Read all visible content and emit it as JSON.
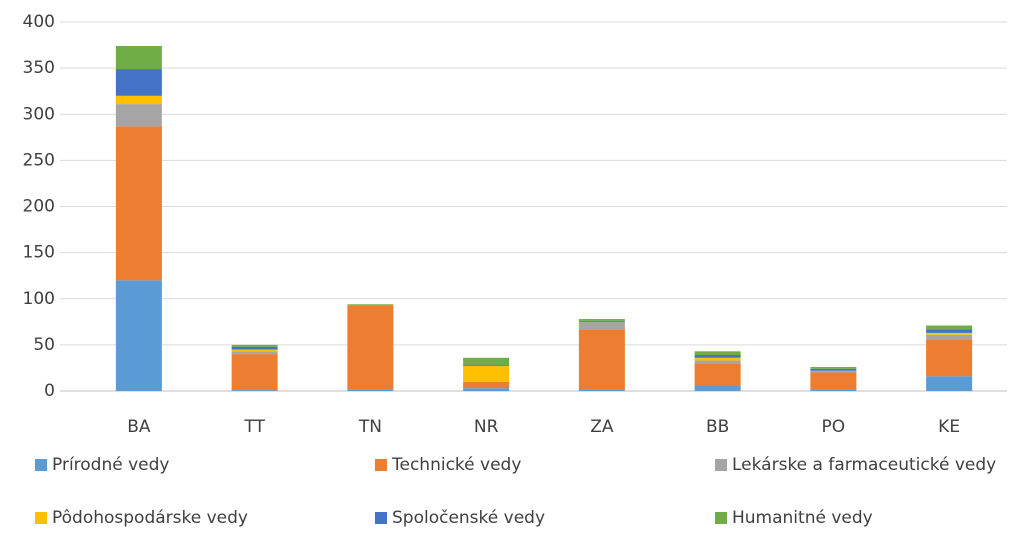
{
  "chart_data": {
    "type": "stacked_bar",
    "categories": [
      "BA",
      "TT",
      "TN",
      "NR",
      "ZA",
      "BB",
      "PO",
      "KE"
    ],
    "series": [
      {
        "name": "Prírodné vedy",
        "color": "#5b9bd5",
        "values": [
          120,
          1,
          2,
          3,
          2,
          6,
          2,
          16
        ]
      },
      {
        "name": "Technické vedy",
        "color": "#ed7d31",
        "values": [
          167,
          39,
          91,
          7,
          65,
          24,
          18,
          40
        ]
      },
      {
        "name": "Lekárske a farmaceutické vedy",
        "color": "#a5a5a5",
        "values": [
          24,
          3,
          0,
          0,
          8,
          3,
          2,
          5
        ]
      },
      {
        "name": "Pôdohospodárske vedy",
        "color": "#ffc000",
        "values": [
          9,
          2,
          0,
          17,
          0,
          3,
          0,
          2
        ]
      },
      {
        "name": "Spoločenské vedy",
        "color": "#4472c4",
        "values": [
          29,
          3,
          0,
          1,
          1,
          3,
          2,
          4
        ]
      },
      {
        "name": "Humanitné vedy",
        "color": "#70ad47",
        "values": [
          25,
          2,
          1,
          8,
          2,
          4,
          2,
          4
        ]
      }
    ],
    "ylim": [
      0,
      400
    ],
    "yticks": [
      0,
      50,
      100,
      150,
      200,
      250,
      300,
      350,
      400
    ],
    "grid": true,
    "legend": "bottom"
  }
}
